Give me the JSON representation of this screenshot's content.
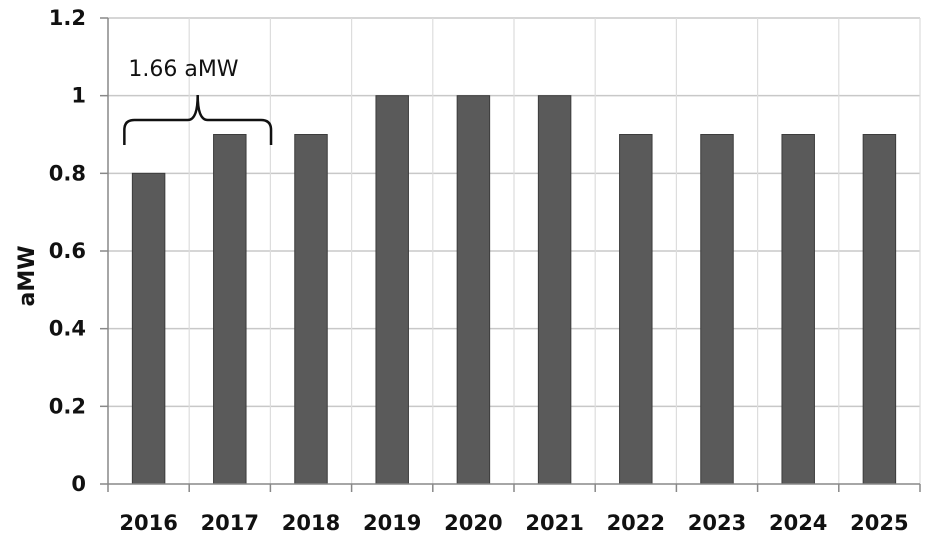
{
  "chart_data": {
    "type": "bar",
    "categories": [
      "2016",
      "2017",
      "2018",
      "2019",
      "2020",
      "2021",
      "2022",
      "2023",
      "2024",
      "2025"
    ],
    "values": [
      0.8,
      0.9,
      0.9,
      1.0,
      1.0,
      1.0,
      0.9,
      0.9,
      0.9,
      0.9
    ],
    "ylabel": "aMW",
    "ylim": [
      0,
      1.2
    ],
    "yticks": [
      "0",
      "0.2",
      "0.4",
      "0.6",
      "0.8",
      "1",
      "1.2"
    ],
    "grid": true,
    "legend": "none",
    "bar_color": "#5a5a5a",
    "annotation": {
      "text": "1.66 aMW",
      "span": [
        "2016",
        "2017"
      ]
    }
  }
}
